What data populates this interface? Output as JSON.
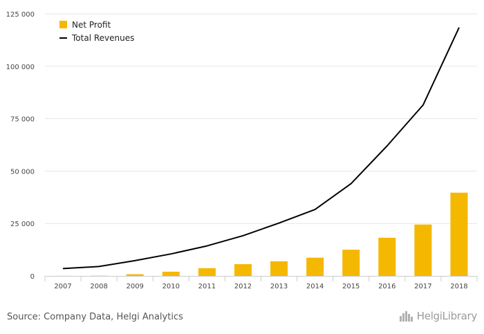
{
  "chart_data": {
    "type": "bar",
    "categories": [
      "2007",
      "2008",
      "2009",
      "2010",
      "2011",
      "2012",
      "2013",
      "2014",
      "2015",
      "2016",
      "2017",
      "2018"
    ],
    "series": [
      {
        "name": "Net Profit",
        "type": "bar",
        "color": "#f5b800",
        "values": [
          50,
          100,
          800,
          2000,
          3700,
          5600,
          7000,
          8700,
          12500,
          18200,
          24500,
          39700
        ]
      },
      {
        "name": "Total Revenues",
        "type": "line",
        "color": "#000000",
        "values": [
          3500,
          4500,
          7300,
          10500,
          14300,
          19200,
          25200,
          31700,
          44000,
          62000,
          81500,
          118500
        ]
      }
    ],
    "yticks": [
      "0",
      "25 000",
      "50 000",
      "75 000",
      "100 000",
      "125 000"
    ],
    "ytick_values": [
      0,
      25000,
      50000,
      75000,
      100000,
      125000
    ],
    "ylim": [
      0,
      125000
    ],
    "grid": true,
    "legend_position": "top-left",
    "title": "",
    "xlabel": "",
    "ylabel": ""
  },
  "footer": {
    "source": "Source: Company Data, Helgi Analytics",
    "logo": "HelgiLibrary"
  }
}
